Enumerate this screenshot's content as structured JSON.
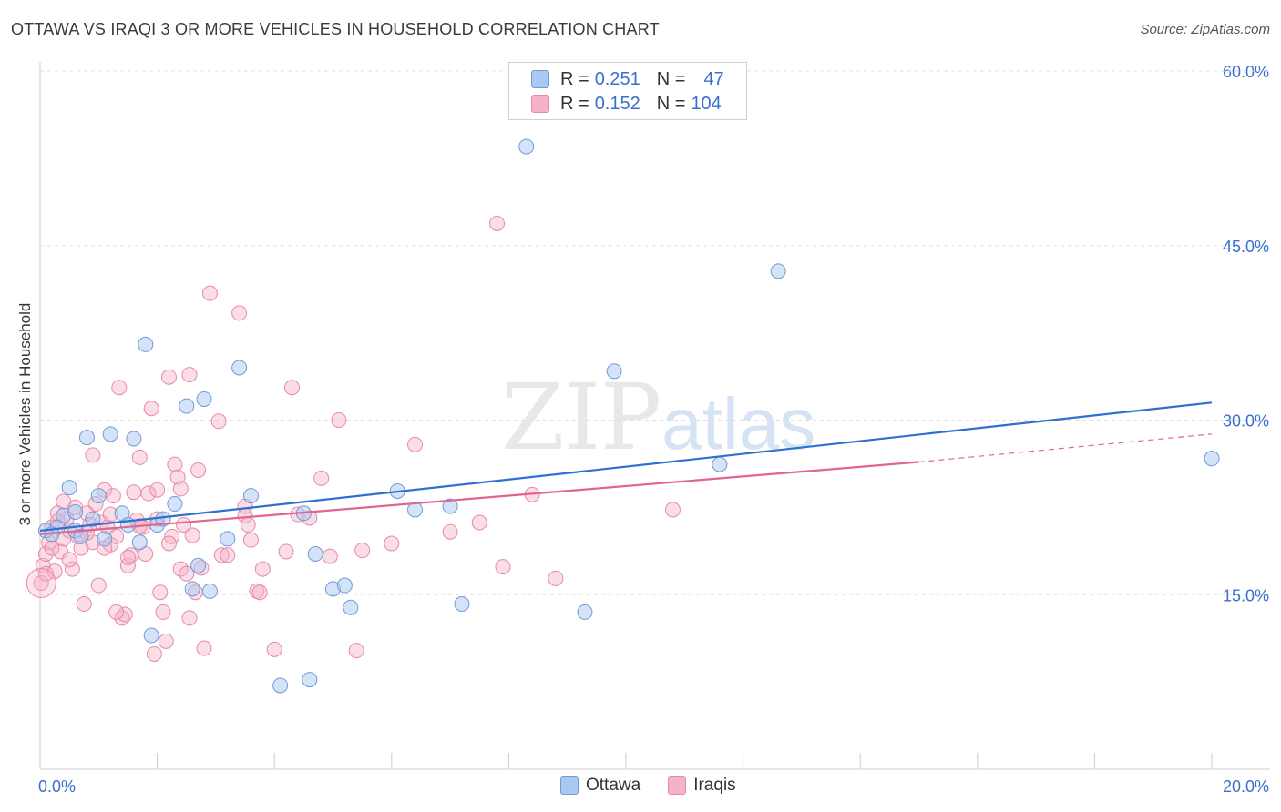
{
  "title": "OTTAWA VS IRAQI 3 OR MORE VEHICLES IN HOUSEHOLD CORRELATION CHART",
  "source": "Source: ZipAtlas.com",
  "watermark": {
    "zip": "ZIP",
    "atlas": "atlas"
  },
  "legend": {
    "r_label": "R =",
    "n_label": "N =",
    "ottawa": {
      "r": "0.251",
      "n": "47"
    },
    "iraqis": {
      "r": "0.152",
      "n": "104"
    }
  },
  "bottom_legend": {
    "ottawa": "Ottawa",
    "iraqis": "Iraqis"
  },
  "colors": {
    "ottawa_fill": "#aac8f0",
    "ottawa_stroke": "#6f9bd8",
    "ottawa_line": "#2f6fd1",
    "iraqis_fill": "#f5b3c8",
    "iraqis_stroke": "#e889a8",
    "iraqis_line": "#e0668f",
    "tick_label": "#3a6fcf",
    "grid": "#e0e0e0"
  },
  "chart_data": {
    "type": "scatter",
    "title": "OTTAWA VS IRAQI 3 OR MORE VEHICLES IN HOUSEHOLD CORRELATION CHART",
    "xlabel": "",
    "ylabel": "3 or more Vehicles in Household",
    "xlim": [
      0,
      20
    ],
    "ylim": [
      0,
      60
    ],
    "x_tick_labels": [
      "0.0%",
      "20.0%"
    ],
    "y_ticks": [
      15,
      30,
      45,
      60
    ],
    "y_tick_labels": [
      "15.0%",
      "30.0%",
      "45.0%",
      "60.0%"
    ],
    "grid": true,
    "series": [
      {
        "name": "Ottawa",
        "points": [
          [
            0.1,
            20.5
          ],
          [
            0.3,
            20.8
          ],
          [
            0.4,
            21.8
          ],
          [
            0.5,
            24.2
          ],
          [
            0.6,
            20.5
          ],
          [
            0.7,
            20.0
          ],
          [
            0.8,
            28.5
          ],
          [
            0.9,
            21.5
          ],
          [
            1.0,
            23.5
          ],
          [
            1.1,
            19.8
          ],
          [
            1.2,
            28.8
          ],
          [
            1.4,
            22.0
          ],
          [
            1.5,
            21.0
          ],
          [
            1.6,
            28.4
          ],
          [
            1.7,
            19.5
          ],
          [
            1.8,
            36.5
          ],
          [
            1.9,
            11.5
          ],
          [
            2.0,
            21.0
          ],
          [
            2.1,
            21.5
          ],
          [
            2.3,
            22.8
          ],
          [
            2.5,
            31.2
          ],
          [
            2.7,
            17.5
          ],
          [
            2.8,
            31.8
          ],
          [
            2.9,
            15.3
          ],
          [
            3.2,
            19.8
          ],
          [
            3.4,
            34.5
          ],
          [
            3.6,
            23.5
          ],
          [
            4.1,
            7.2
          ],
          [
            4.5,
            22.0
          ],
          [
            4.6,
            7.7
          ],
          [
            4.7,
            18.5
          ],
          [
            5.0,
            15.5
          ],
          [
            5.2,
            15.8
          ],
          [
            5.3,
            13.9
          ],
          [
            6.1,
            23.9
          ],
          [
            6.4,
            22.3
          ],
          [
            7.0,
            22.6
          ],
          [
            7.2,
            14.2
          ],
          [
            8.3,
            53.5
          ],
          [
            9.3,
            13.5
          ],
          [
            9.8,
            34.2
          ],
          [
            11.6,
            26.2
          ],
          [
            12.6,
            42.8
          ],
          [
            20.0,
            26.7
          ],
          [
            0.2,
            20.2
          ],
          [
            0.6,
            22.1
          ],
          [
            2.6,
            15.5
          ]
        ]
      },
      {
        "name": "Iraqis",
        "points": [
          [
            0.02,
            16.0
          ],
          [
            0.05,
            17.5
          ],
          [
            0.1,
            18.5
          ],
          [
            0.15,
            19.5
          ],
          [
            0.2,
            20.8
          ],
          [
            0.25,
            17.0
          ],
          [
            0.3,
            22.0
          ],
          [
            0.35,
            18.7
          ],
          [
            0.4,
            19.8
          ],
          [
            0.45,
            21.5
          ],
          [
            0.5,
            20.5
          ],
          [
            0.55,
            17.2
          ],
          [
            0.6,
            22.5
          ],
          [
            0.65,
            20.0
          ],
          [
            0.7,
            19.0
          ],
          [
            0.75,
            14.2
          ],
          [
            0.8,
            22.0
          ],
          [
            0.85,
            21.0
          ],
          [
            0.9,
            19.5
          ],
          [
            0.95,
            22.8
          ],
          [
            1.0,
            15.8
          ],
          [
            1.05,
            21.2
          ],
          [
            1.1,
            24.0
          ],
          [
            1.15,
            20.8
          ],
          [
            1.2,
            19.3
          ],
          [
            1.25,
            23.5
          ],
          [
            1.3,
            20.0
          ],
          [
            1.35,
            32.8
          ],
          [
            1.4,
            13.0
          ],
          [
            1.45,
            13.3
          ],
          [
            1.5,
            17.5
          ],
          [
            1.55,
            18.4
          ],
          [
            1.6,
            23.8
          ],
          [
            1.65,
            21.4
          ],
          [
            1.7,
            26.8
          ],
          [
            1.75,
            20.8
          ],
          [
            1.8,
            18.5
          ],
          [
            1.85,
            23.7
          ],
          [
            1.9,
            31.0
          ],
          [
            1.95,
            9.9
          ],
          [
            2.0,
            21.5
          ],
          [
            2.05,
            15.2
          ],
          [
            2.1,
            13.5
          ],
          [
            2.15,
            11.0
          ],
          [
            2.2,
            33.7
          ],
          [
            2.25,
            20.0
          ],
          [
            2.3,
            26.2
          ],
          [
            2.35,
            25.1
          ],
          [
            2.4,
            17.2
          ],
          [
            2.45,
            21.0
          ],
          [
            2.5,
            16.8
          ],
          [
            2.55,
            13.0
          ],
          [
            2.6,
            20.1
          ],
          [
            2.65,
            15.2
          ],
          [
            2.7,
            25.7
          ],
          [
            2.75,
            17.3
          ],
          [
            2.8,
            10.4
          ],
          [
            2.9,
            40.9
          ],
          [
            3.05,
            29.9
          ],
          [
            3.1,
            18.4
          ],
          [
            3.2,
            18.4
          ],
          [
            3.4,
            39.2
          ],
          [
            3.5,
            21.8
          ],
          [
            3.55,
            21.0
          ],
          [
            3.6,
            19.7
          ],
          [
            3.7,
            15.3
          ],
          [
            3.75,
            15.2
          ],
          [
            3.8,
            17.2
          ],
          [
            4.0,
            10.3
          ],
          [
            4.2,
            18.7
          ],
          [
            4.3,
            32.8
          ],
          [
            4.4,
            21.9
          ],
          [
            4.6,
            21.6
          ],
          [
            4.8,
            25.0
          ],
          [
            4.95,
            18.3
          ],
          [
            5.1,
            30.0
          ],
          [
            5.4,
            10.2
          ],
          [
            5.5,
            18.8
          ],
          [
            6.0,
            19.4
          ],
          [
            6.4,
            27.9
          ],
          [
            7.0,
            20.4
          ],
          [
            7.5,
            21.2
          ],
          [
            7.8,
            46.9
          ],
          [
            7.9,
            17.4
          ],
          [
            8.4,
            23.6
          ],
          [
            8.8,
            16.4
          ],
          [
            10.8,
            22.3
          ],
          [
            2.55,
            33.9
          ],
          [
            0.1,
            16.8
          ],
          [
            0.2,
            19.0
          ],
          [
            0.3,
            21.3
          ],
          [
            0.5,
            18.0
          ],
          [
            0.8,
            20.3
          ],
          [
            1.2,
            21.9
          ],
          [
            1.5,
            18.2
          ],
          [
            1.7,
            20.9
          ],
          [
            2.0,
            24.0
          ],
          [
            2.4,
            24.1
          ],
          [
            3.5,
            22.6
          ],
          [
            0.9,
            27.0
          ],
          [
            1.1,
            19.0
          ],
          [
            0.4,
            23.0
          ],
          [
            2.2,
            19.4
          ],
          [
            1.3,
            13.5
          ]
        ]
      }
    ],
    "trend_lines": [
      {
        "name": "Ottawa",
        "x": [
          0,
          20
        ],
        "y": [
          20.5,
          31.5
        ]
      },
      {
        "name": "Iraqis",
        "x": [
          0,
          15
        ],
        "y": [
          20.2,
          26.4
        ],
        "dashed_extension_to": [
          20,
          28.8
        ]
      }
    ]
  }
}
